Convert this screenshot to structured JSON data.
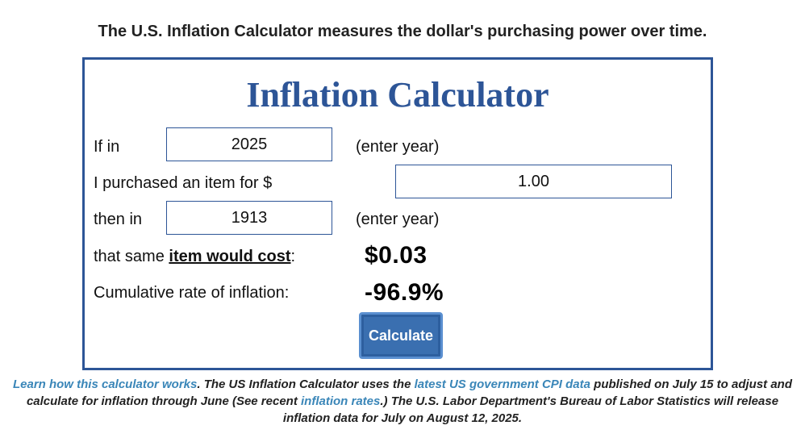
{
  "header": {
    "tagline": "The U.S. Inflation Calculator measures the dollar's purchasing power over time."
  },
  "calculator": {
    "title": "Inflation Calculator",
    "row1": {
      "label": "If in",
      "value": "2025",
      "hint": "(enter year)"
    },
    "row2": {
      "label": "I purchased an item for $",
      "value": "1.00"
    },
    "row3": {
      "label": "then in",
      "value": "1913",
      "hint": "(enter year)"
    },
    "row4": {
      "label_pre": "that same ",
      "label_bold": "item would cost",
      "label_post": ":",
      "result": "$0.03"
    },
    "row5": {
      "label": "Cumulative rate of inflation:",
      "result": "-96.9%"
    },
    "button_label": "Calculate"
  },
  "footer": {
    "link1": "Learn how this calculator works",
    "text1": ". The US Inflation Calculator uses the ",
    "link2": "latest US government CPI data",
    "text2": " published on July 15 to adjust and calculate for inflation through June (See recent ",
    "link3": "inflation rates",
    "text3": ".) The U.S. Labor Department's Bureau of Labor Statistics will release inflation data for July on August 12, 2025."
  },
  "colors": {
    "accent": "#2d5597",
    "button": "#3a6fb0",
    "link": "#3a86b8"
  }
}
